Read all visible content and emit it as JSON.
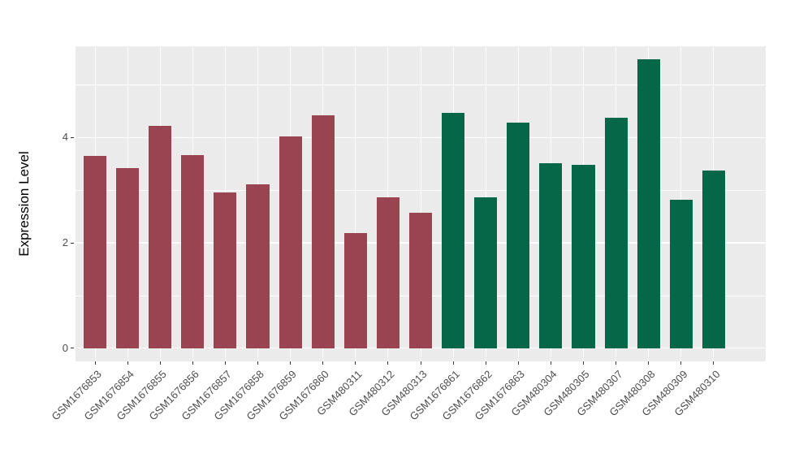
{
  "chart_data": {
    "type": "bar",
    "title": "",
    "ylabel": "Expression Level",
    "xlabel": "",
    "categories": [
      "GSM1676853",
      "GSM1676854",
      "GSM1676855",
      "GSM1676856",
      "GSM1676857",
      "GSM1676858",
      "GSM1676859",
      "GSM1676860",
      "GSM480311",
      "GSM480312",
      "GSM480313",
      "GSM1676861",
      "GSM1676862",
      "GSM1676863",
      "GSM480304",
      "GSM480305",
      "GSM480307",
      "GSM480308",
      "GSM480309",
      "GSM480310"
    ],
    "values": [
      3.65,
      3.42,
      4.22,
      3.67,
      2.96,
      3.11,
      4.02,
      4.42,
      2.19,
      2.87,
      2.57,
      4.46,
      2.86,
      4.28,
      3.51,
      3.48,
      4.38,
      5.48,
      2.82,
      3.37
    ],
    "group_of_bar": [
      "A",
      "A",
      "A",
      "A",
      "A",
      "A",
      "A",
      "A",
      "A",
      "A",
      "A",
      "B",
      "B",
      "B",
      "B",
      "B",
      "B",
      "B",
      "B",
      "B"
    ],
    "group_colors": {
      "A": "#9A4452",
      "B": "#066748"
    },
    "yticks": [
      0,
      2,
      4
    ],
    "yticks_minor": [
      1,
      3,
      5
    ],
    "ylim": [
      -0.25,
      5.73
    ],
    "bar_width_ratio": 0.7,
    "grid": true,
    "legend_position": "none",
    "panel_bg": "#EBEBEB",
    "grid_color": "#FFFFFF",
    "tick_color": "#333333",
    "tick_text_color": "#4D4D4D",
    "axis_title_color": "#000000"
  }
}
